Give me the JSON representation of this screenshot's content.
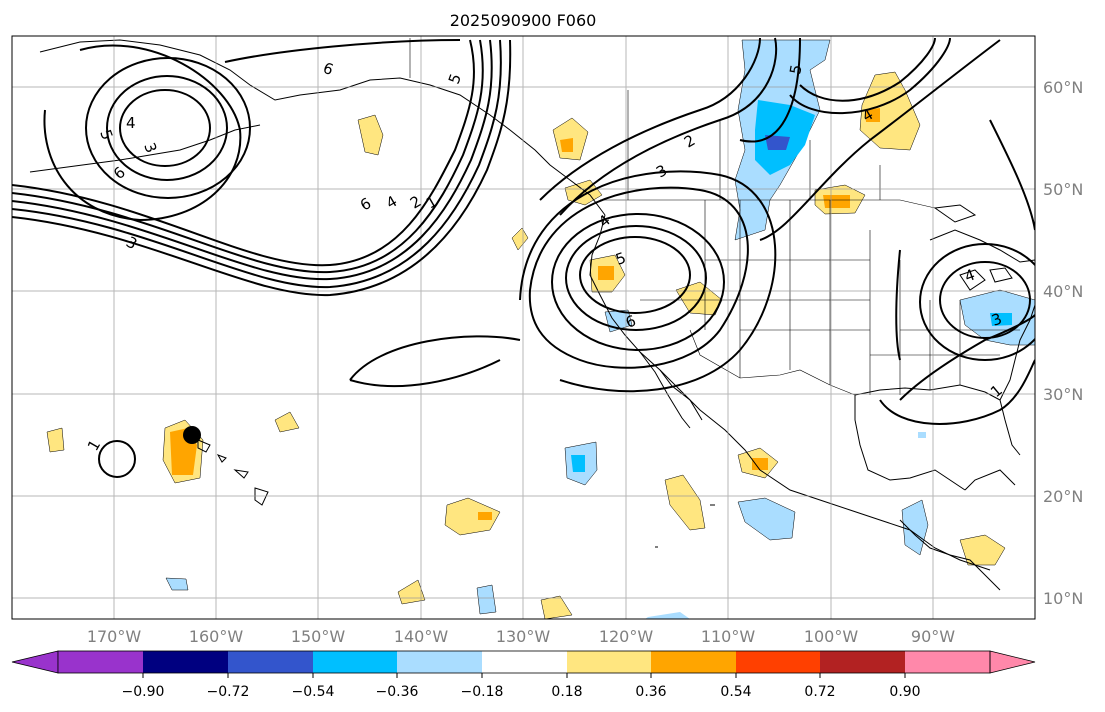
{
  "title": "2025090900 F060",
  "lon_labels": [
    "170°W",
    "160°W",
    "150°W",
    "140°W",
    "130°W",
    "120°W",
    "110°W",
    "100°W",
    "90°W"
  ],
  "lat_labels": [
    "10°N",
    "20°N",
    "30°N",
    "40°N",
    "50°N",
    "60°N"
  ],
  "colorbar": {
    "ticks": [
      "−0.90",
      "−0.72",
      "−0.54",
      "−0.36",
      "−0.18",
      "0.18",
      "0.36",
      "0.54",
      "0.72",
      "0.90"
    ],
    "colors": [
      "#9933cc",
      "#000080",
      "#3355cc",
      "#00bfff",
      "#aaddff",
      "#ffffff",
      "#ffe680",
      "#ffa500",
      "#ff4000",
      "#b22222",
      "#ff88aa"
    ]
  },
  "contour_labels": [
    "6",
    "5",
    "4",
    "3",
    "6",
    "3",
    "6",
    "4",
    "2",
    "1",
    "5",
    "5",
    "3",
    "2",
    "4",
    "5",
    "6",
    "4",
    "4",
    "3",
    "1",
    "1"
  ],
  "marker": {
    "label": "",
    "lon": -162.3,
    "lat": 25.9
  }
}
